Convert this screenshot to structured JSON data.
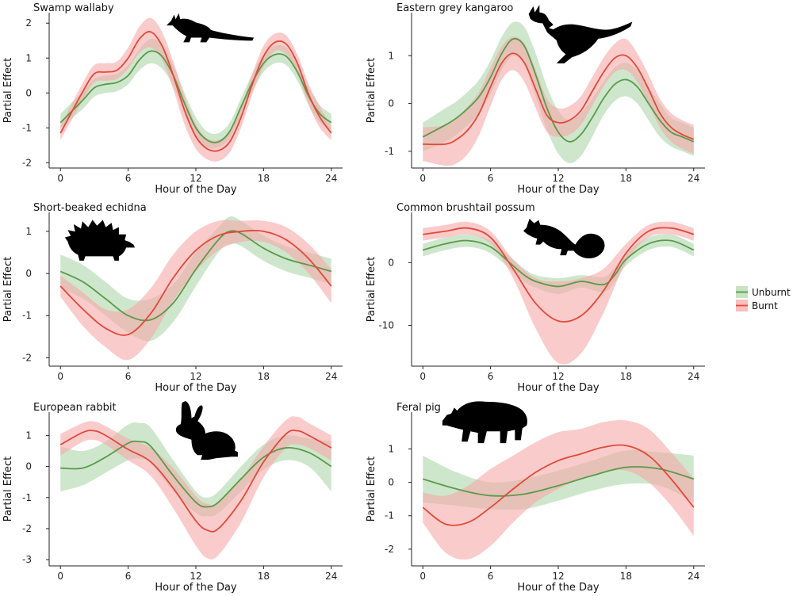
{
  "figure": {
    "colors": {
      "unburnt_line": "#5a9a4a",
      "unburnt_band": "#b4dab0",
      "burnt_line": "#e04a3a",
      "burnt_band": "#f7a8a8"
    },
    "legend": {
      "items": [
        {
          "label": "Unburnt",
          "color": "#5a9a4a",
          "band": "#b4dab0"
        },
        {
          "label": "Burnt",
          "color": "#e04a3a",
          "band": "#f7a8a8"
        }
      ]
    }
  },
  "chart_data": [
    {
      "type": "line",
      "title": "Swamp wallaby",
      "silhouette": "wallaby-icon",
      "xlabel": "Hour of the Day",
      "ylabel": "Partial Effect",
      "xlim": [
        -1,
        25
      ],
      "ylim": [
        -2.15,
        2.3
      ],
      "xticks": [
        0,
        6,
        12,
        18,
        24
      ],
      "yticks": [
        -2,
        -1,
        0,
        1,
        2
      ],
      "series": [
        {
          "name": "Unburnt",
          "x": [
            0,
            2,
            3,
            4,
            5,
            6,
            7,
            8,
            9,
            10,
            11,
            12,
            13,
            14,
            15,
            16,
            17,
            18,
            19,
            20,
            21,
            22,
            23,
            24
          ],
          "y": [
            -0.85,
            -0.2,
            0.15,
            0.25,
            0.3,
            0.5,
            0.95,
            1.2,
            1.05,
            0.5,
            -0.3,
            -1.0,
            -1.35,
            -1.4,
            -1.1,
            -0.4,
            0.3,
            0.85,
            1.1,
            1.05,
            0.6,
            -0.1,
            -0.6,
            -0.85
          ],
          "lower": [
            -1.0,
            -0.45,
            -0.1,
            0.0,
            0.05,
            0.25,
            0.65,
            0.85,
            0.7,
            0.2,
            -0.6,
            -1.3,
            -1.55,
            -1.55,
            -1.3,
            -0.65,
            0.05,
            0.6,
            0.85,
            0.8,
            0.35,
            -0.35,
            -0.85,
            -1.05
          ],
          "upper": [
            -0.6,
            0.05,
            0.4,
            0.5,
            0.55,
            0.8,
            1.25,
            1.55,
            1.4,
            0.8,
            0.0,
            -0.7,
            -1.1,
            -1.15,
            -0.85,
            -0.15,
            0.55,
            1.1,
            1.35,
            1.3,
            0.85,
            0.15,
            -0.35,
            -0.6
          ]
        },
        {
          "name": "Burnt",
          "x": [
            0,
            2,
            3,
            4,
            5,
            6,
            7,
            8,
            9,
            10,
            11,
            12,
            13,
            14,
            15,
            16,
            17,
            18,
            19,
            20,
            21,
            22,
            23,
            24
          ],
          "y": [
            -1.15,
            0.05,
            0.55,
            0.6,
            0.65,
            1.0,
            1.55,
            1.75,
            1.35,
            0.5,
            -0.5,
            -1.25,
            -1.6,
            -1.65,
            -1.4,
            -0.7,
            0.25,
            1.05,
            1.45,
            1.4,
            0.85,
            -0.05,
            -0.7,
            -1.15
          ],
          "lower": [
            -1.35,
            -0.2,
            0.3,
            0.35,
            0.4,
            0.7,
            1.15,
            1.3,
            0.95,
            0.1,
            -0.9,
            -1.6,
            -1.9,
            -1.95,
            -1.7,
            -1.0,
            -0.05,
            0.75,
            1.2,
            1.1,
            0.55,
            -0.35,
            -1.0,
            -1.35
          ],
          "upper": [
            -0.95,
            0.3,
            0.8,
            0.85,
            0.9,
            1.3,
            1.9,
            2.15,
            1.75,
            0.9,
            -0.1,
            -0.9,
            -1.3,
            -1.35,
            -1.1,
            -0.4,
            0.55,
            1.35,
            1.7,
            1.65,
            1.1,
            0.25,
            -0.4,
            -0.95
          ]
        }
      ]
    },
    {
      "type": "line",
      "title": "Eastern grey kangaroo",
      "silhouette": "kangaroo-icon",
      "xlabel": "Hour of the Day",
      "ylabel": "Partial Effect",
      "xlim": [
        -1,
        25
      ],
      "ylim": [
        -1.35,
        1.9
      ],
      "xticks": [
        0,
        6,
        12,
        18,
        24
      ],
      "yticks": [
        -1,
        0,
        1
      ],
      "series": [
        {
          "name": "Unburnt",
          "x": [
            0,
            2,
            3,
            4,
            5,
            6,
            7,
            8,
            9,
            10,
            11,
            12,
            13,
            14,
            15,
            16,
            17,
            18,
            19,
            20,
            21,
            22,
            23,
            24
          ],
          "y": [
            -0.7,
            -0.45,
            -0.3,
            -0.1,
            0.15,
            0.55,
            1.05,
            1.35,
            1.2,
            0.6,
            -0.1,
            -0.6,
            -0.8,
            -0.65,
            -0.3,
            0.1,
            0.4,
            0.5,
            0.35,
            0.0,
            -0.35,
            -0.6,
            -0.7,
            -0.8
          ],
          "lower": [
            -1.0,
            -0.8,
            -0.65,
            -0.45,
            -0.2,
            0.2,
            0.7,
            1.0,
            0.8,
            0.15,
            -0.55,
            -1.05,
            -1.25,
            -1.1,
            -0.7,
            -0.25,
            0.05,
            0.15,
            0.0,
            -0.35,
            -0.7,
            -0.9,
            -1.0,
            -1.1
          ],
          "upper": [
            -0.4,
            -0.1,
            0.05,
            0.25,
            0.5,
            0.9,
            1.4,
            1.7,
            1.6,
            1.05,
            0.35,
            -0.15,
            -0.35,
            -0.2,
            0.1,
            0.45,
            0.75,
            0.85,
            0.7,
            0.35,
            0.0,
            -0.3,
            -0.4,
            -0.5
          ]
        },
        {
          "name": "Burnt",
          "x": [
            0,
            2,
            3,
            4,
            5,
            6,
            7,
            8,
            9,
            10,
            11,
            12,
            13,
            14,
            15,
            16,
            17,
            18,
            19,
            20,
            21,
            22,
            23,
            24
          ],
          "y": [
            -0.85,
            -0.85,
            -0.75,
            -0.55,
            -0.2,
            0.35,
            0.85,
            1.05,
            0.85,
            0.3,
            -0.25,
            -0.4,
            -0.35,
            -0.15,
            0.25,
            0.65,
            0.95,
            1.0,
            0.75,
            0.3,
            -0.2,
            -0.5,
            -0.65,
            -0.75
          ],
          "lower": [
            -1.2,
            -1.3,
            -1.25,
            -1.05,
            -0.65,
            -0.05,
            0.5,
            0.7,
            0.45,
            -0.1,
            -0.6,
            -0.7,
            -0.65,
            -0.45,
            -0.05,
            0.35,
            0.65,
            0.7,
            0.45,
            0.0,
            -0.5,
            -0.8,
            -0.95,
            -1.05
          ],
          "upper": [
            -0.5,
            -0.45,
            -0.3,
            -0.05,
            0.25,
            0.75,
            1.2,
            1.4,
            1.25,
            0.7,
            0.1,
            -0.1,
            -0.05,
            0.15,
            0.55,
            0.95,
            1.25,
            1.35,
            1.05,
            0.6,
            0.1,
            -0.2,
            -0.35,
            -0.45
          ]
        }
      ]
    },
    {
      "type": "line",
      "title": "Short-beaked echidna",
      "silhouette": "echidna-icon",
      "xlabel": "Hour of the Day",
      "ylabel": "Partial Effect",
      "xlim": [
        -1,
        25
      ],
      "ylim": [
        -2.2,
        1.45
      ],
      "xticks": [
        0,
        6,
        12,
        18,
        24
      ],
      "yticks": [
        -2,
        -1,
        0,
        1
      ],
      "series": [
        {
          "name": "Unburnt",
          "x": [
            0,
            2,
            4,
            6,
            8,
            10,
            12,
            14,
            15,
            16,
            18,
            20,
            22,
            24
          ],
          "y": [
            0.05,
            -0.2,
            -0.6,
            -1.0,
            -1.1,
            -0.7,
            0.1,
            0.8,
            1.0,
            0.95,
            0.6,
            0.35,
            0.2,
            0.05
          ],
          "lower": [
            -0.35,
            -0.6,
            -1.0,
            -1.4,
            -1.6,
            -1.15,
            -0.3,
            0.5,
            0.7,
            0.65,
            0.3,
            0.05,
            -0.1,
            -0.25
          ],
          "upper": [
            0.45,
            0.2,
            -0.2,
            -0.6,
            -0.6,
            -0.25,
            0.5,
            1.1,
            1.35,
            1.25,
            0.9,
            0.65,
            0.5,
            0.35
          ]
        },
        {
          "name": "Burnt",
          "x": [
            0,
            2,
            4,
            6,
            8,
            10,
            12,
            14,
            16,
            18,
            20,
            22,
            24
          ],
          "y": [
            -0.3,
            -0.85,
            -1.3,
            -1.45,
            -0.95,
            -0.1,
            0.55,
            0.9,
            1.0,
            1.0,
            0.8,
            0.35,
            -0.3
          ],
          "lower": [
            -0.55,
            -1.25,
            -1.75,
            -2.05,
            -1.55,
            -0.65,
            0.05,
            0.55,
            0.75,
            0.75,
            0.5,
            0.0,
            -0.7
          ],
          "upper": [
            -0.05,
            -0.45,
            -0.85,
            -0.85,
            -0.35,
            0.45,
            1.0,
            1.25,
            1.25,
            1.25,
            1.1,
            0.7,
            0.1
          ]
        }
      ]
    },
    {
      "type": "line",
      "title": "Common brushtail possum",
      "silhouette": "possum-icon",
      "xlabel": "Hour of the Day",
      "ylabel": "Partial Effect",
      "xlim": [
        -1,
        25
      ],
      "ylim": [
        -16.5,
        8.0
      ],
      "xticks": [
        0,
        6,
        12,
        18,
        24
      ],
      "yticks": [
        -10,
        0
      ],
      "series": [
        {
          "name": "Unburnt",
          "x": [
            0,
            2,
            4,
            6,
            8,
            9,
            10,
            12,
            14,
            16,
            17,
            18,
            20,
            22,
            24
          ],
          "y": [
            2.0,
            3.0,
            3.5,
            2.5,
            -0.5,
            -2.0,
            -3.0,
            -3.8,
            -3.0,
            -3.5,
            -2.0,
            0.5,
            3.0,
            3.5,
            2.0
          ],
          "lower": [
            1.0,
            2.0,
            2.5,
            1.5,
            -1.5,
            -3.0,
            -4.0,
            -5.0,
            -4.0,
            -4.7,
            -3.2,
            -0.5,
            2.0,
            2.5,
            1.0
          ],
          "upper": [
            3.0,
            4.0,
            4.5,
            3.5,
            0.5,
            -1.0,
            -2.0,
            -2.5,
            -2.0,
            -2.3,
            -0.8,
            1.5,
            4.0,
            4.5,
            3.0
          ]
        },
        {
          "name": "Burnt",
          "x": [
            0,
            2,
            4,
            6,
            8,
            10,
            12,
            14,
            16,
            18,
            20,
            22,
            24
          ],
          "y": [
            4.5,
            5.0,
            5.5,
            4.0,
            -1.0,
            -6.5,
            -9.3,
            -8.5,
            -4.5,
            1.5,
            5.0,
            5.5,
            4.5
          ],
          "lower": [
            3.5,
            4.0,
            4.5,
            3.0,
            -2.5,
            -10.5,
            -16.0,
            -14.5,
            -8.0,
            0.0,
            4.0,
            4.5,
            3.5
          ],
          "upper": [
            5.5,
            6.0,
            6.5,
            5.0,
            0.5,
            -2.5,
            -3.0,
            -2.5,
            -1.0,
            3.0,
            6.0,
            6.5,
            5.5
          ]
        }
      ]
    },
    {
      "type": "line",
      "title": "European rabbit",
      "silhouette": "rabbit-icon",
      "xlabel": "Hour of the Day",
      "ylabel": "Partial Effect",
      "xlim": [
        -1,
        25
      ],
      "ylim": [
        -3.2,
        1.75
      ],
      "xticks": [
        0,
        6,
        12,
        18,
        24
      ],
      "yticks": [
        -3,
        -2,
        -1,
        0,
        1
      ],
      "series": [
        {
          "name": "Unburnt",
          "x": [
            0,
            2,
            4,
            6,
            7,
            8,
            10,
            12,
            13,
            14,
            16,
            18,
            20,
            22,
            24
          ],
          "y": [
            -0.05,
            -0.05,
            0.3,
            0.75,
            0.8,
            0.65,
            -0.3,
            -1.15,
            -1.3,
            -1.15,
            -0.4,
            0.3,
            0.6,
            0.45,
            0.0
          ],
          "lower": [
            -0.8,
            -0.6,
            -0.2,
            0.2,
            0.25,
            0.1,
            -0.8,
            -1.5,
            -1.6,
            -1.5,
            -0.8,
            -0.1,
            0.2,
            0.0,
            -0.8
          ],
          "upper": [
            0.65,
            0.5,
            0.8,
            1.35,
            1.4,
            1.25,
            0.2,
            -0.8,
            -1.0,
            -0.8,
            0.0,
            0.7,
            1.0,
            0.9,
            0.8
          ]
        },
        {
          "name": "Burnt",
          "x": [
            0,
            2,
            3,
            4,
            6,
            8,
            10,
            12,
            13,
            14,
            16,
            18,
            20,
            21,
            22,
            24
          ],
          "y": [
            0.7,
            1.1,
            1.15,
            1.0,
            0.55,
            0.15,
            -0.7,
            -1.75,
            -2.05,
            -2.0,
            -1.1,
            0.15,
            1.05,
            1.15,
            1.0,
            0.6
          ],
          "lower": [
            0.35,
            0.8,
            0.85,
            0.7,
            0.2,
            -0.3,
            -1.35,
            -2.55,
            -2.95,
            -2.85,
            -1.8,
            -0.35,
            0.6,
            0.7,
            0.6,
            0.2
          ],
          "upper": [
            1.05,
            1.4,
            1.45,
            1.3,
            0.9,
            0.6,
            -0.05,
            -0.95,
            -1.2,
            -1.15,
            -0.4,
            0.65,
            1.5,
            1.6,
            1.4,
            1.0
          ]
        }
      ]
    },
    {
      "type": "line",
      "title": "Feral pig",
      "silhouette": "pig-icon",
      "xlabel": "Hour of the Day",
      "ylabel": "Partial Effect",
      "xlim": [
        -1,
        25
      ],
      "ylim": [
        -2.5,
        2.1
      ],
      "xticks": [
        0,
        6,
        12,
        18,
        24
      ],
      "yticks": [
        -2,
        -1,
        0,
        1
      ],
      "series": [
        {
          "name": "Unburnt",
          "x": [
            0,
            3,
            6,
            9,
            12,
            15,
            18,
            21,
            24
          ],
          "y": [
            0.1,
            -0.2,
            -0.4,
            -0.35,
            -0.1,
            0.2,
            0.45,
            0.4,
            0.1
          ],
          "lower": [
            -0.6,
            -0.7,
            -0.8,
            -0.8,
            -0.55,
            -0.25,
            -0.05,
            -0.1,
            -0.6
          ],
          "upper": [
            0.8,
            0.3,
            0.0,
            0.1,
            0.35,
            0.65,
            0.95,
            0.9,
            0.8
          ]
        },
        {
          "name": "Burnt",
          "x": [
            0,
            2,
            4,
            6,
            8,
            10,
            12,
            14,
            16,
            18,
            20,
            22,
            24
          ],
          "y": [
            -0.75,
            -1.25,
            -1.2,
            -0.75,
            -0.2,
            0.3,
            0.65,
            0.85,
            1.05,
            1.1,
            0.8,
            0.1,
            -0.75
          ],
          "lower": [
            -1.2,
            -2.1,
            -2.3,
            -1.9,
            -1.2,
            -0.6,
            -0.2,
            0.1,
            0.3,
            0.35,
            0.0,
            -0.7,
            -1.6
          ],
          "upper": [
            -0.3,
            -0.4,
            -0.1,
            0.4,
            0.8,
            1.2,
            1.5,
            1.6,
            1.8,
            1.85,
            1.6,
            0.9,
            0.1
          ]
        }
      ]
    }
  ]
}
